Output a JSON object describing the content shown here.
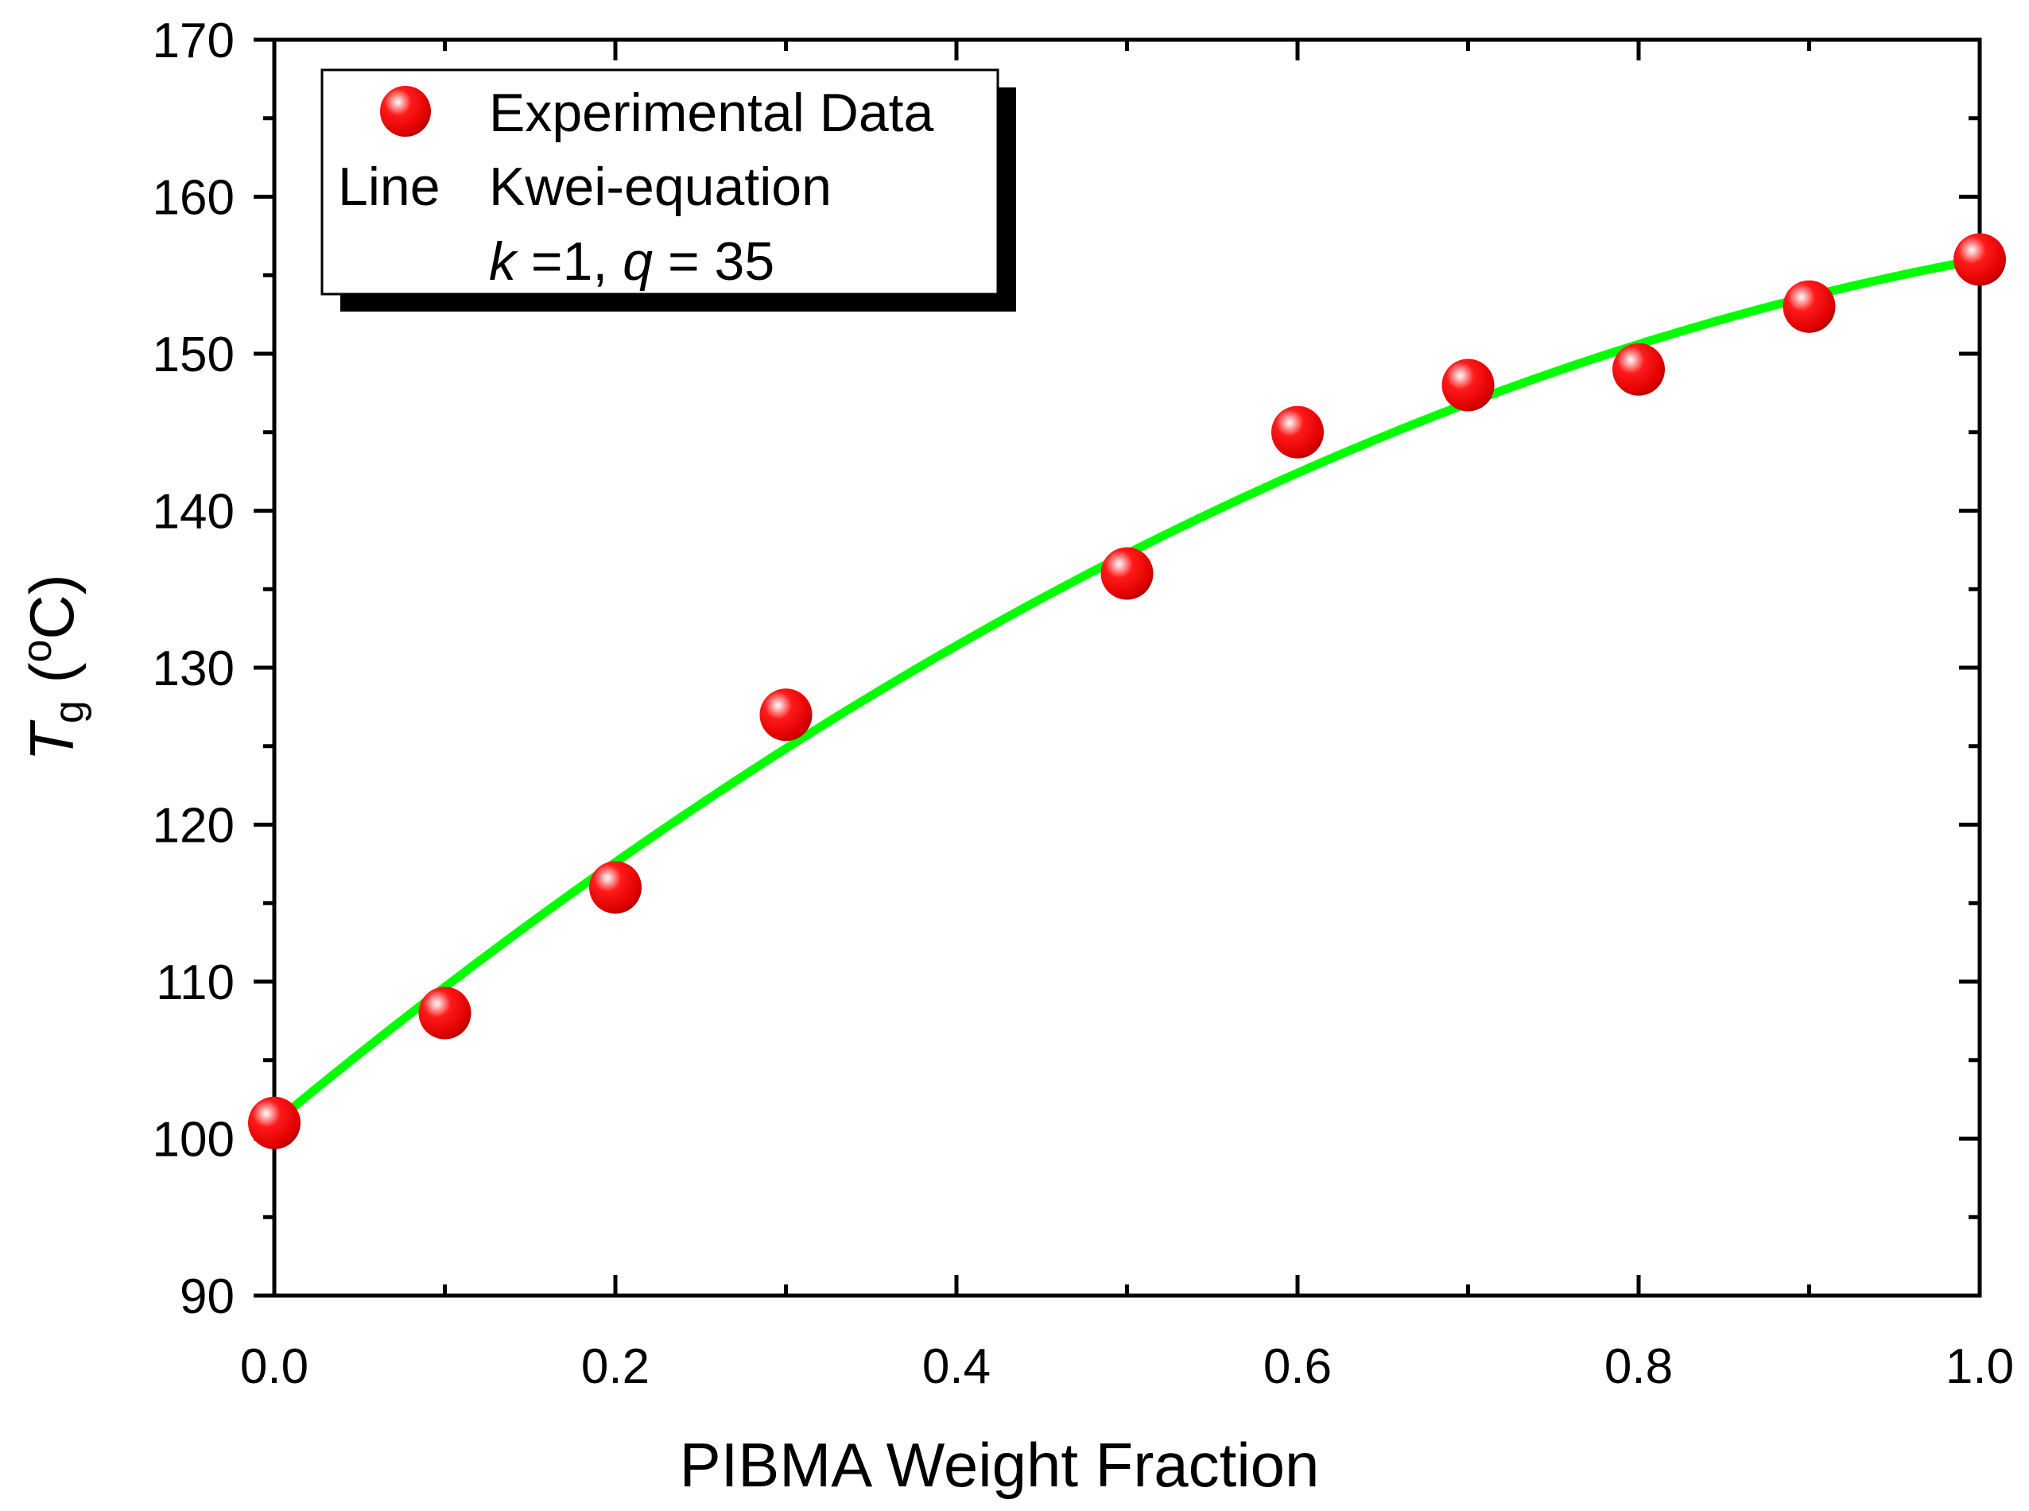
{
  "chart_data": {
    "type": "scatter",
    "title": "",
    "xlabel": "PIBMA Weight Fraction",
    "ylabel": {
      "symbol": "T",
      "subscript": "g",
      "unit_open": " (",
      "unit_sup": "o",
      "unit_rest": "C)"
    },
    "xlim": [
      0.0,
      1.0
    ],
    "ylim": [
      90,
      170
    ],
    "x_ticks": [
      0.0,
      0.2,
      0.4,
      0.6,
      0.8,
      1.0
    ],
    "x_tick_labels": [
      "0.0",
      "0.2",
      "0.4",
      "0.6",
      "0.8",
      "1.0"
    ],
    "x_minor_ticks": [
      0.1,
      0.3,
      0.5,
      0.7,
      0.9
    ],
    "y_ticks": [
      90,
      100,
      110,
      120,
      130,
      140,
      150,
      160,
      170
    ],
    "y_tick_labels": [
      "90",
      "100",
      "110",
      "120",
      "130",
      "140",
      "150",
      "160",
      "170"
    ],
    "y_minor_ticks": [
      95,
      105,
      115,
      125,
      135,
      145,
      155,
      165
    ],
    "grid": false,
    "series": [
      {
        "name": "Experimental Data",
        "kind": "markers",
        "color": "#ff0000",
        "x": [
          0.0,
          0.1,
          0.2,
          0.3,
          0.5,
          0.6,
          0.7,
          0.8,
          0.9,
          1.0
        ],
        "y": [
          101,
          108,
          116,
          127,
          136,
          145,
          148,
          149,
          153,
          156
        ]
      },
      {
        "name": "Kwei-equation",
        "kind": "line",
        "color": "#00ff00",
        "model": {
          "Tg1": 101,
          "Tg2": 156,
          "k": 1,
          "q": 35
        }
      }
    ],
    "legend": {
      "position": "top-left",
      "entries": {
        "marker_label": "Experimental Data",
        "line_prefix": "Line",
        "line_label": "Kwei-equation",
        "params": {
          "k_symbol": "k",
          "k_text": " =1, ",
          "q_symbol": "q",
          "q_text": " = 35"
        }
      }
    }
  }
}
